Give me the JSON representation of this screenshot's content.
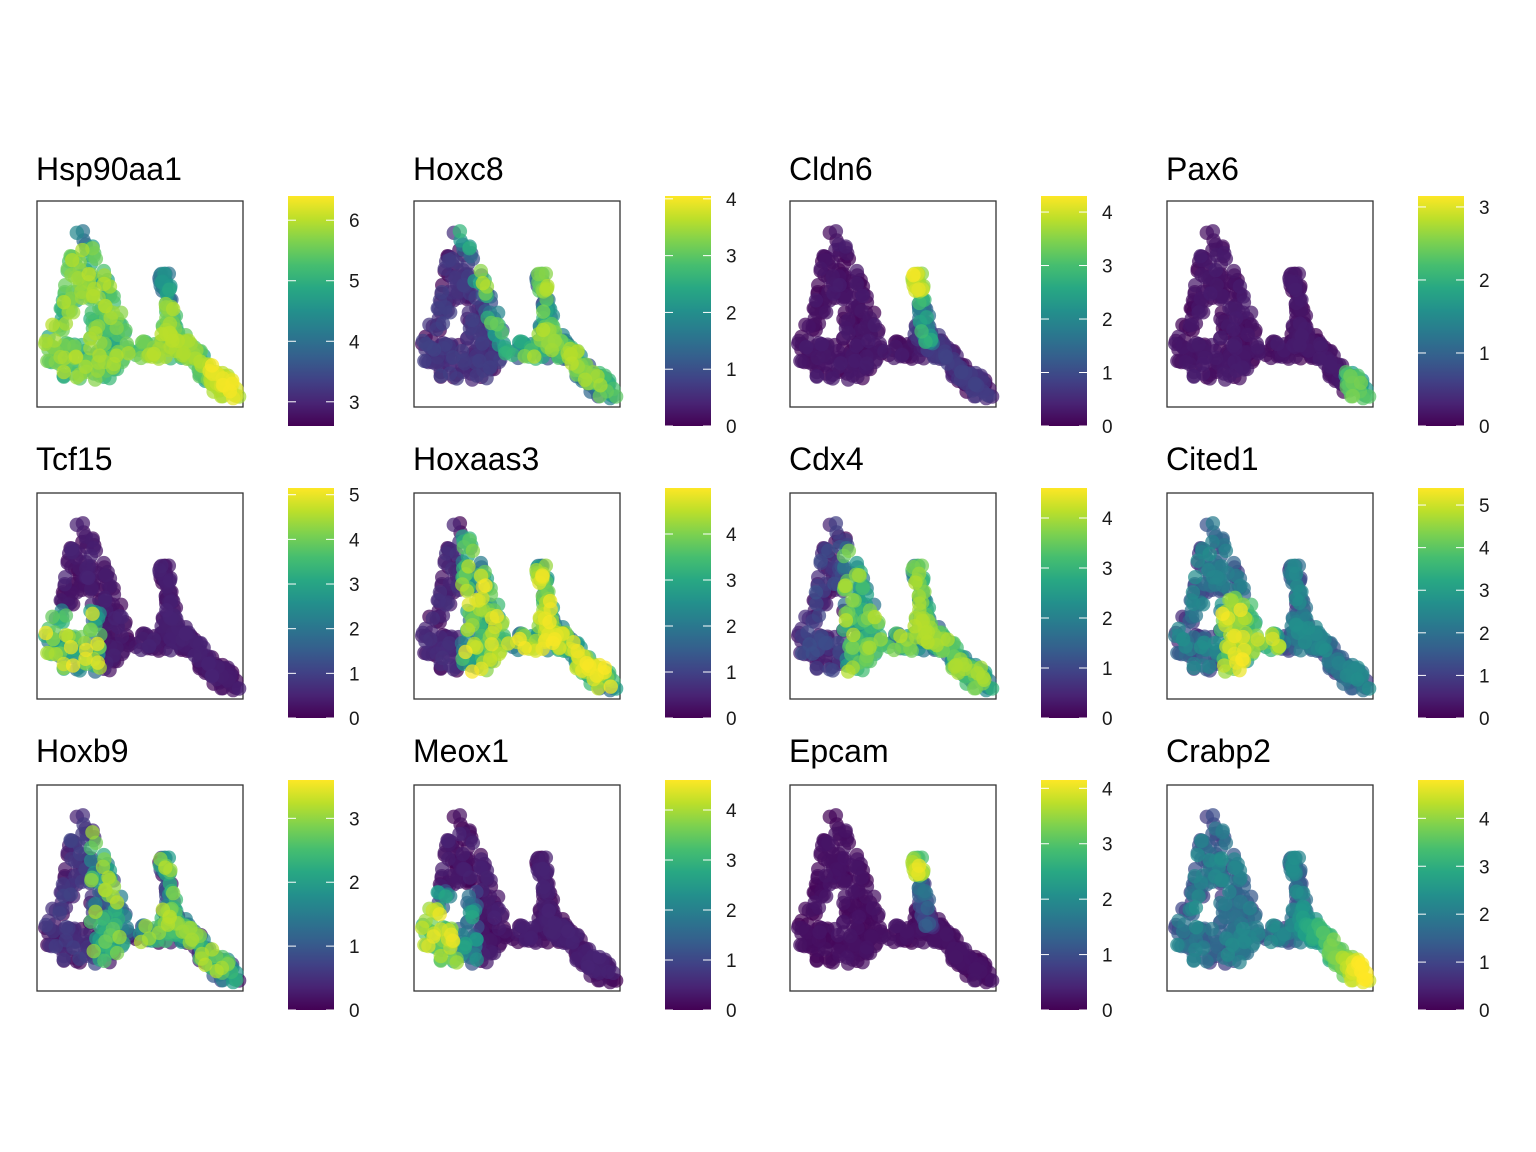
{
  "chart_data": {
    "type": "scatter",
    "colormap": "viridis",
    "panels": [
      {
        "title": "Hsp90aa1",
        "legend": {
          "min": 2.6,
          "max": 6.4,
          "ticks": [
            3,
            4,
            5,
            6
          ]
        },
        "pattern": "mostly_high"
      },
      {
        "title": "Hoxc8",
        "legend": {
          "min": 0,
          "max": 4.05,
          "ticks": [
            0,
            1,
            2,
            3,
            4
          ]
        },
        "pattern": "right_diagonal"
      },
      {
        "title": "Cldn6",
        "legend": {
          "min": 0,
          "max": 4.3,
          "ticks": [
            0,
            1,
            2,
            3,
            4
          ]
        },
        "pattern": "branch_tip"
      },
      {
        "title": "Pax6",
        "legend": {
          "min": 0,
          "max": 3.15,
          "ticks": [
            0,
            1,
            2,
            3
          ]
        },
        "pattern": "right_tail_end"
      },
      {
        "title": "Tcf15",
        "legend": {
          "min": 0,
          "max": 5.15,
          "ticks": [
            0,
            1,
            2,
            3,
            4,
            5
          ]
        },
        "pattern": "left_lobe"
      },
      {
        "title": "Hoxaas3",
        "legend": {
          "min": 0,
          "max": 5.0,
          "ticks": [
            0,
            1,
            2,
            3,
            4
          ]
        },
        "pattern": "center_right"
      },
      {
        "title": "Cdx4",
        "legend": {
          "min": 0,
          "max": 4.6,
          "ticks": [
            0,
            1,
            2,
            3,
            4
          ]
        },
        "pattern": "center_right_mid"
      },
      {
        "title": "Cited1",
        "legend": {
          "min": 0,
          "max": 5.4,
          "ticks": [
            0,
            1,
            2,
            3,
            4,
            5
          ]
        },
        "pattern": "center_loop"
      },
      {
        "title": "Hoxb9",
        "legend": {
          "min": 0,
          "max": 3.6,
          "ticks": [
            0,
            1,
            2,
            3
          ]
        },
        "pattern": "right_mixed"
      },
      {
        "title": "Meox1",
        "legend": {
          "min": 0,
          "max": 4.6,
          "ticks": [
            0,
            1,
            2,
            3,
            4
          ]
        },
        "pattern": "left_lobe_bright"
      },
      {
        "title": "Epcam",
        "legend": {
          "min": 0,
          "max": 4.15,
          "ticks": [
            0,
            1,
            2,
            3,
            4
          ]
        },
        "pattern": "branch_tip_small"
      },
      {
        "title": "Crabp2",
        "legend": {
          "min": 0,
          "max": 4.8,
          "ticks": [
            0,
            1,
            2,
            3,
            4
          ]
        },
        "pattern": "tail_gradient"
      }
    ]
  }
}
